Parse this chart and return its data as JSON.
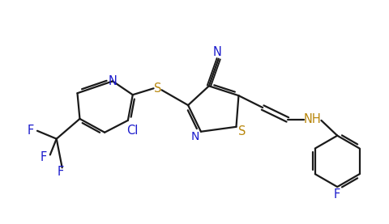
{
  "background_color": "#ffffff",
  "bond_color": "#1a1a1a",
  "atom_colors": {
    "N": "#1a1acc",
    "S": "#b8860b",
    "F": "#1a1acc",
    "Cl": "#1a1acc",
    "C": "#1a1a1a",
    "NH": "#b8860b"
  },
  "line_width": 1.6,
  "font_size": 10.5,
  "fig_width": 4.81,
  "fig_height": 2.77,
  "dpi": 100
}
